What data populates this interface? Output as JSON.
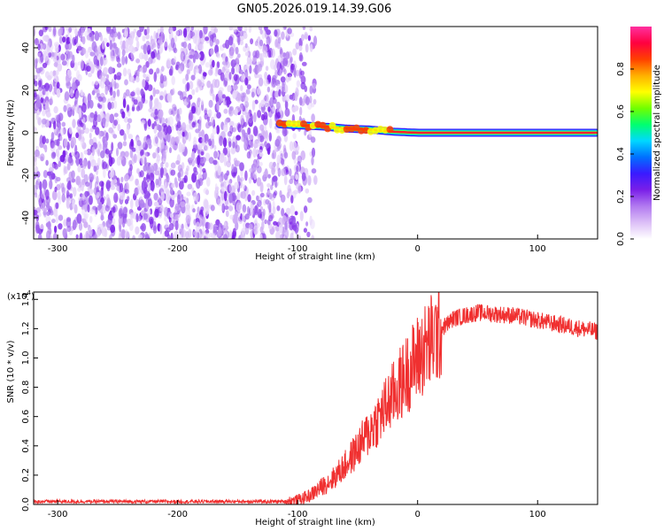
{
  "title": "GN05.2026.019.14.39.G06",
  "colors": {
    "noise": "#7a1fe8",
    "snr_line": "#f03030",
    "axis": "#000000",
    "colorbar": [
      "#ffffff",
      "#dcbff7",
      "#b27af0",
      "#7a1fe8",
      "#3a1aff",
      "#0070ff",
      "#00d8ff",
      "#00ff70",
      "#70ff00",
      "#ffff00",
      "#ffb000",
      "#ff4000",
      "#ff0040",
      "#ff30a0"
    ]
  },
  "chart_data": [
    {
      "type": "heatmap",
      "name": "spectrogram",
      "title": "GN05.2026.019.14.39.G06",
      "xlabel": "Height of straight line (km)",
      "ylabel": "Frequency (Hz)",
      "xlim": [
        -320,
        150
      ],
      "ylim": [
        -50,
        50
      ],
      "xticks": [
        -300,
        -200,
        -100,
        0,
        100
      ],
      "yticks": [
        -40,
        -20,
        0,
        20,
        40
      ],
      "noise_region_km": [
        -320,
        -100
      ],
      "signal_start_km": -115,
      "signal_frequency_hz": [
        {
          "x": -115,
          "y": 4
        },
        {
          "x": -100,
          "y": 3.5
        },
        {
          "x": -80,
          "y": 3
        },
        {
          "x": -60,
          "y": 2
        },
        {
          "x": -40,
          "y": 1.5
        },
        {
          "x": -20,
          "y": 0.5
        },
        {
          "x": 0,
          "y": 0
        },
        {
          "x": 150,
          "y": 0
        }
      ],
      "colorbar": {
        "label": "Normalized spectral amplitude",
        "range": [
          0,
          1
        ],
        "ticks": [
          "0.0",
          "0.2",
          "0.4",
          "0.6",
          "0.8"
        ]
      }
    },
    {
      "type": "line",
      "name": "snr",
      "xlabel": "Height of straight line (km)",
      "ylabel": "SNR (10 * v/v)",
      "y_multiplier": "(x10",
      "y_multiplier_exp": "4",
      "xlim": [
        -320,
        150
      ],
      "ylim": [
        0,
        1.45
      ],
      "xticks": [
        -300,
        -200,
        -100,
        0,
        100
      ],
      "yticks": [
        "0.0",
        "0.2",
        "0.4",
        "0.6",
        "0.8",
        "1.0",
        "1.2",
        "1.4"
      ],
      "series": [
        {
          "name": "SNR",
          "trend": [
            {
              "x": -320,
              "y": 0.02
            },
            {
              "x": -110,
              "y": 0.02
            },
            {
              "x": -100,
              "y": 0.03
            },
            {
              "x": -90,
              "y": 0.06
            },
            {
              "x": -80,
              "y": 0.12
            },
            {
              "x": -70,
              "y": 0.18
            },
            {
              "x": -60,
              "y": 0.27
            },
            {
              "x": -50,
              "y": 0.38
            },
            {
              "x": -40,
              "y": 0.5
            },
            {
              "x": -30,
              "y": 0.62
            },
            {
              "x": -20,
              "y": 0.75
            },
            {
              "x": -10,
              "y": 0.88
            },
            {
              "x": 0,
              "y": 1.0
            },
            {
              "x": 10,
              "y": 1.1
            },
            {
              "x": 20,
              "y": 1.2
            },
            {
              "x": 30,
              "y": 1.27
            },
            {
              "x": 50,
              "y": 1.31
            },
            {
              "x": 80,
              "y": 1.29
            },
            {
              "x": 110,
              "y": 1.24
            },
            {
              "x": 150,
              "y": 1.18
            }
          ]
        }
      ]
    }
  ]
}
